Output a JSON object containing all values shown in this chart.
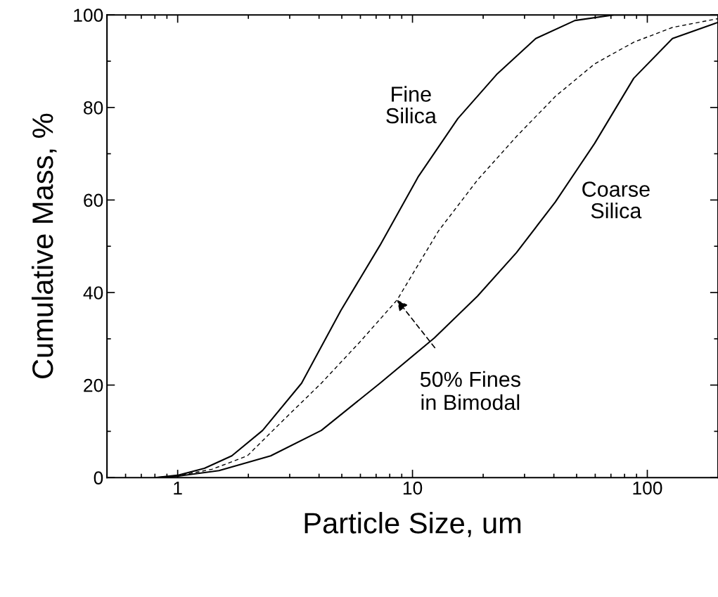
{
  "chart_data": {
    "type": "line",
    "xlabel": "Particle Size, um",
    "ylabel": "Cumulative Mass, %",
    "log": "x",
    "xlim": [
      0.5,
      200
    ],
    "xticks": [
      1,
      10,
      100
    ],
    "ylim": [
      0,
      100
    ],
    "yticks": [
      0,
      20,
      40,
      60,
      80,
      100
    ],
    "grid": false,
    "legend": false,
    "marker": "none",
    "series": [
      {
        "name": "Fine\nSilica",
        "color": "#000000",
        "line_style": "solid",
        "x": [
          0.8,
          1,
          1.3,
          1.7,
          2.3,
          3.37,
          4.95,
          7.27,
          10.6,
          15.6,
          22.8,
          33.5,
          49.2,
          72,
          200
        ],
        "values": [
          0,
          0.5,
          2,
          4.7,
          10.2,
          20.4,
          36.1,
          50.2,
          65.1,
          77.6,
          87.1,
          94.9,
          98.8,
          100,
          100
        ]
      },
      {
        "color": "#000000",
        "line_style": "dashed",
        "x": [
          0.8,
          1,
          1.4,
          1.98,
          2.79,
          4.09,
          5.99,
          8.6,
          12.9,
          18.9,
          27.7,
          40.6,
          59.6,
          87.5,
          128,
          200
        ],
        "values": [
          0,
          0.4,
          1.8,
          4.7,
          12.2,
          20.4,
          29.4,
          38.4,
          53.3,
          64.3,
          73.7,
          82.4,
          89.4,
          94.1,
          97.3,
          99.2
        ]
      },
      {
        "name": "Coarse\nSilica",
        "color": "#000000",
        "line_style": "solid",
        "x": [
          0.8,
          1,
          1.5,
          2.49,
          4.09,
          7.27,
          12.4,
          18.9,
          27.7,
          40.6,
          59.6,
          87.5,
          128,
          200
        ],
        "values": [
          0,
          0.3,
          1.5,
          4.7,
          10.2,
          20.4,
          30.2,
          39.2,
          48.6,
          59.6,
          72.2,
          86.3,
          94.9,
          98.4
        ]
      }
    ],
    "annotations": [
      {
        "text": "50% Fines\nin Bimodal",
        "x": 8.6,
        "y": 38.4
      }
    ]
  }
}
